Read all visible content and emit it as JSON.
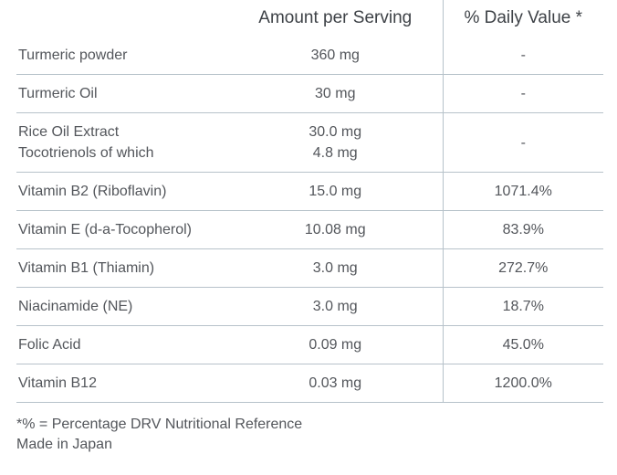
{
  "table": {
    "headers": {
      "ingredient": "",
      "amount": "Amount per Serving",
      "daily_value": "% Daily Value *"
    },
    "rows": [
      {
        "name": "Turmeric powder",
        "amount": "360 mg",
        "dv": "-"
      },
      {
        "name": "Turmeric Oil",
        "amount": "30 mg",
        "dv": "-"
      },
      {
        "name": "Rice Oil Extract\nTocotrienols of which",
        "amount": "30.0 mg\n4.8 mg",
        "dv": "-"
      },
      {
        "name": "Vitamin B2 (Riboflavin)",
        "amount": "15.0 mg",
        "dv": "1071.4%"
      },
      {
        "name": "Vitamin E (d-a-Tocopherol)",
        "amount": "10.08 mg",
        "dv": "83.9%"
      },
      {
        "name": "Vitamin B1 (Thiamin)",
        "amount": "3.0 mg",
        "dv": "272.7%"
      },
      {
        "name": "Niacinamide (NE)",
        "amount": "3.0 mg",
        "dv": "18.7%"
      },
      {
        "name": "Folic Acid",
        "amount": "0.09 mg",
        "dv": "45.0%"
      },
      {
        "name": "Vitamin B12",
        "amount": "0.03 mg",
        "dv": "1200.0%"
      }
    ],
    "footnote": {
      "line1": "*% = Percentage DRV Nutritional Reference",
      "line2": "Made in Japan"
    }
  },
  "colors": {
    "text": "#53565b",
    "header_text": "#3e4247",
    "border": "#b7c2ca",
    "background": "#ffffff"
  }
}
